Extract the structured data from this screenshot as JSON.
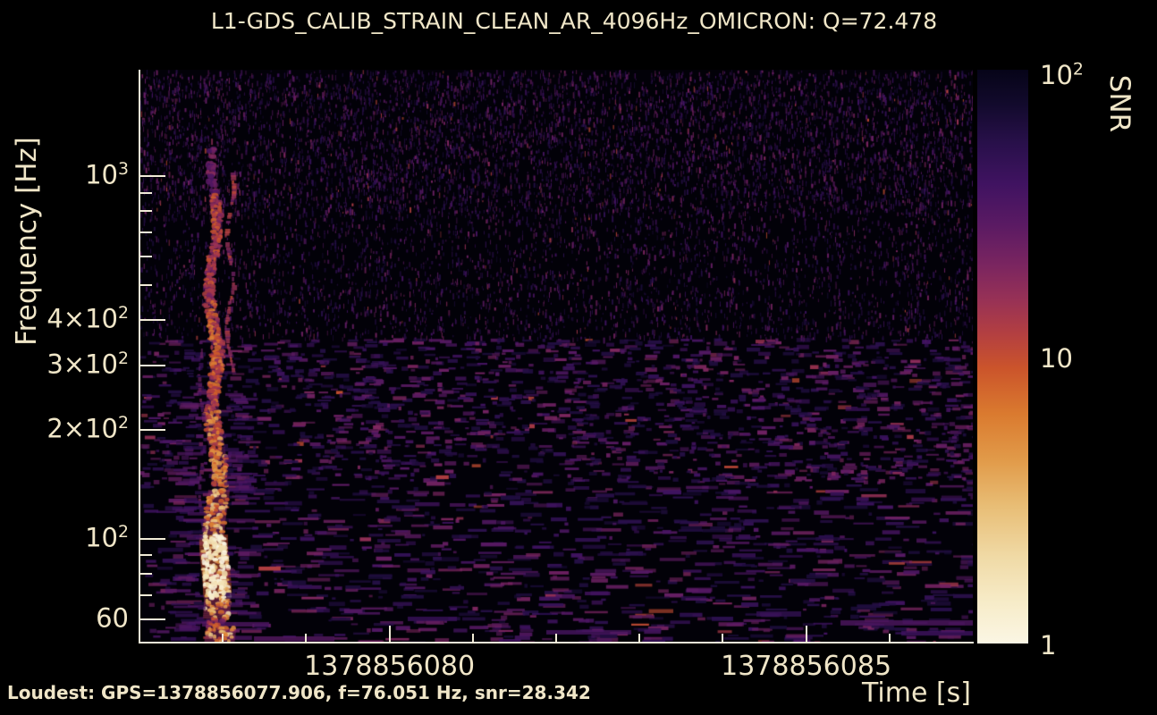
{
  "figure": {
    "background": "#000000",
    "text_color": "#f0e6c8",
    "spine_color": "#f2ecd8"
  },
  "chart_data": {
    "type": "heatmap",
    "title": "L1-GDS_CALIB_STRAIN_CLEAN_AR_4096Hz_OMICRON: Q=72.478",
    "channel": "L1-GDS_CALIB_STRAIN_CLEAN_AR_4096Hz_OMICRON",
    "q_value": 72.478,
    "xlabel": "Time [s]",
    "ylabel": "Frequency [Hz]",
    "colorbar_label": "SNR",
    "x_scale": "linear",
    "y_scale": "log",
    "color_scale": "log",
    "x_range_gps": [
      1378856077.0,
      1378856087.0
    ],
    "y_range_hz": [
      52,
      1965
    ],
    "color_range_snr": [
      1,
      100
    ],
    "x_ticks_major": [
      {
        "value": 1378856080,
        "label": "1378856080"
      },
      {
        "value": 1378856085,
        "label": "1378856085"
      }
    ],
    "x_ticks_minor": [
      1378856078,
      1378856079,
      1378856081,
      1378856082,
      1378856083,
      1378856084,
      1378856086
    ],
    "y_ticks_major": [
      {
        "value": 1000,
        "base": "10",
        "exp": "3"
      },
      {
        "value": 400,
        "base": "4×10",
        "exp": "2"
      },
      {
        "value": 300,
        "base": "3×10",
        "exp": "2"
      },
      {
        "value": 200,
        "base": "2×10",
        "exp": "2"
      },
      {
        "value": 100,
        "base": "10",
        "exp": "2"
      },
      {
        "value": 60,
        "base": "60",
        "exp": ""
      }
    ],
    "y_ticks_minor": [
      900,
      800,
      700,
      600,
      500,
      90,
      80,
      70
    ],
    "colorbar_ticks_major": [
      {
        "value": 100,
        "base": "10",
        "exp": "2"
      },
      {
        "value": 10,
        "base": "10",
        "exp": ""
      },
      {
        "value": 1,
        "base": "1",
        "exp": ""
      }
    ],
    "colorbar_ticks_minor": [
      2,
      3,
      4,
      5,
      6,
      7,
      8,
      9,
      20,
      30,
      40,
      50,
      60,
      70,
      80,
      90
    ],
    "colormap_stops": [
      [
        0.0,
        "#060418"
      ],
      [
        0.06,
        "#120a2c"
      ],
      [
        0.13,
        "#29104b"
      ],
      [
        0.2,
        "#401361"
      ],
      [
        0.27,
        "#5a1a63"
      ],
      [
        0.34,
        "#7a2560"
      ],
      [
        0.4,
        "#973156"
      ],
      [
        0.46,
        "#b33f41"
      ],
      [
        0.52,
        "#cb542b"
      ],
      [
        0.6,
        "#da7a2f"
      ],
      [
        0.68,
        "#e19a49"
      ],
      [
        0.76,
        "#e8bd75"
      ],
      [
        0.85,
        "#f0daa6"
      ],
      [
        0.93,
        "#f7ecc9"
      ],
      [
        1.0,
        "#fbf6e4"
      ]
    ],
    "loudest": {
      "gps": 1378856077.906,
      "frequency_hz": 76.051,
      "snr": 28.342
    },
    "event": {
      "description": "Loud transient: bright vertical chirp track near t=1378856077.9 spanning ~55-1100 Hz over a dark speckled noise background",
      "time_gps": 1378856077.906,
      "freq_extent_hz": [
        55,
        1100
      ],
      "peak_frequency_hz": 76.051,
      "peak_snr": 28.342
    }
  },
  "annotations": {
    "loudest": "Loudest: GPS=1378856077.906, f=76.051 Hz, snr=28.342"
  }
}
